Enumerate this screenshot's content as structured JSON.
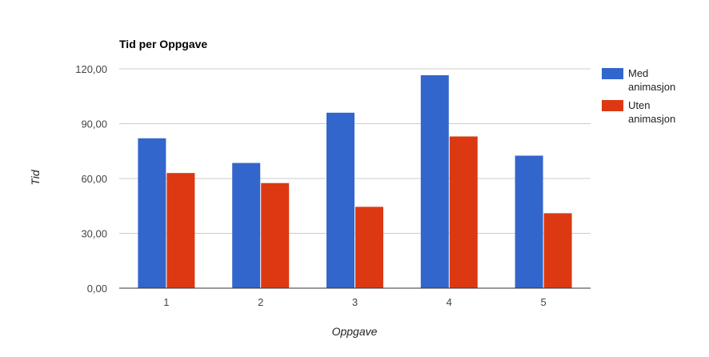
{
  "chart_data": {
    "type": "bar",
    "title": "Tid per Oppgave",
    "xlabel": "Oppgave",
    "ylabel": "Tid",
    "categories": [
      "1",
      "2",
      "3",
      "4",
      "5"
    ],
    "series": [
      {
        "name": "Med animasjon",
        "color": "#3366cc",
        "values": [
          82,
          68.5,
          96,
          116.5,
          72.5
        ]
      },
      {
        "name": "Uten animasjon",
        "color": "#dc3912",
        "values": [
          63,
          57.5,
          44.5,
          83,
          41
        ]
      }
    ],
    "yticks": [
      "0,00",
      "30,00",
      "60,00",
      "90,00",
      "120,00"
    ],
    "ytick_values": [
      0,
      30,
      60,
      90,
      120
    ],
    "ylim": [
      0,
      120
    ],
    "grid": true,
    "legend": "right"
  },
  "legend": {
    "items": [
      {
        "lines": [
          "Med",
          "animasjon"
        ]
      },
      {
        "lines": [
          "Uten",
          "animasjon"
        ]
      }
    ]
  }
}
